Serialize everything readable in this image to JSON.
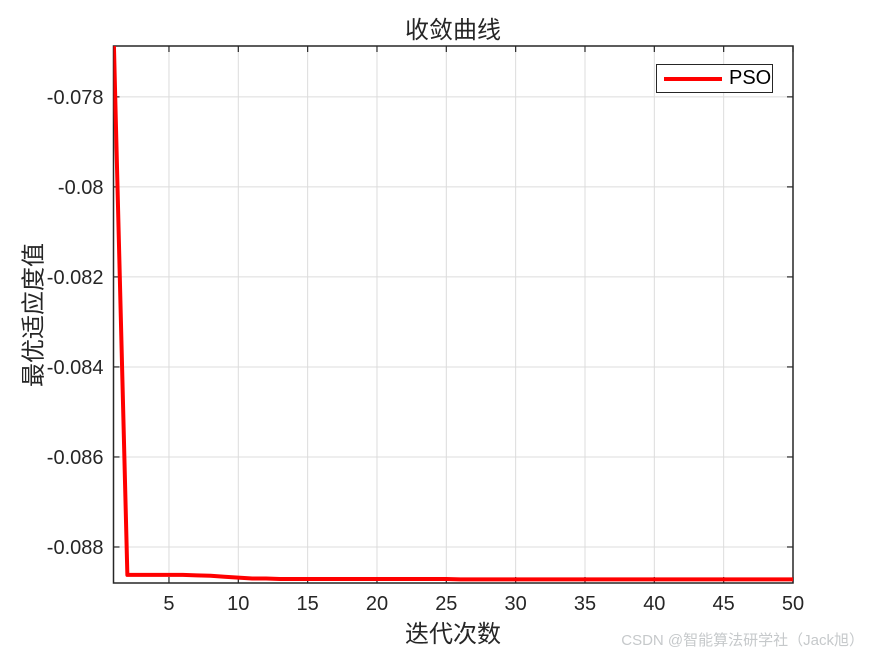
{
  "figure": {
    "title": "收敛曲线",
    "watermark": "CSDN @智能算法研学社（Jack旭）"
  },
  "legend": {
    "entries": [
      {
        "label": "PSO",
        "color": "#ff0000"
      }
    ],
    "position": "top-right"
  },
  "colors": {
    "background": "#ffffff",
    "axis": "#262626",
    "grid": "#dcdcdc",
    "tick_text": "#262626",
    "series_pso": "#ff0000",
    "watermark": "#c6c9cb"
  },
  "chart_data": {
    "type": "line",
    "title": "收敛曲线",
    "xlabel": "迭代次数",
    "ylabel": "最优适应度值",
    "xlim": [
      1,
      50
    ],
    "ylim": [
      -0.0888,
      -0.07687
    ],
    "grid": true,
    "legend_position": "top-right",
    "x_ticks": [
      5,
      10,
      15,
      20,
      25,
      30,
      35,
      40,
      45,
      50
    ],
    "x_tick_labels": [
      "5",
      "10",
      "15",
      "20",
      "25",
      "30",
      "35",
      "40",
      "45",
      "50"
    ],
    "y_ticks": [
      -0.078,
      -0.08,
      -0.082,
      -0.084,
      -0.086,
      -0.088
    ],
    "y_tick_labels": [
      "-0.078",
      "-0.08",
      "-0.082",
      "-0.084",
      "-0.086",
      "-0.088"
    ],
    "series": [
      {
        "name": "PSO",
        "color": "#ff0000",
        "line_width": 4,
        "x": [
          1,
          2,
          3,
          4,
          5,
          6,
          7,
          8,
          9,
          10,
          11,
          12,
          13,
          14,
          15,
          16,
          17,
          18,
          19,
          20,
          21,
          22,
          23,
          24,
          25,
          26,
          27,
          28,
          29,
          30,
          31,
          32,
          33,
          34,
          35,
          36,
          37,
          38,
          39,
          40,
          41,
          42,
          43,
          44,
          45,
          46,
          47,
          48,
          49,
          50
        ],
        "y": [
          -0.0765,
          -0.08862,
          -0.08862,
          -0.08862,
          -0.08862,
          -0.08862,
          -0.08863,
          -0.08864,
          -0.08866,
          -0.08868,
          -0.0887,
          -0.0887,
          -0.08871,
          -0.08871,
          -0.08871,
          -0.08871,
          -0.08871,
          -0.08871,
          -0.08871,
          -0.08871,
          -0.08871,
          -0.08871,
          -0.08871,
          -0.08871,
          -0.08871,
          -0.08872,
          -0.08872,
          -0.08872,
          -0.08872,
          -0.08872,
          -0.08872,
          -0.08872,
          -0.08872,
          -0.08872,
          -0.08872,
          -0.08872,
          -0.08872,
          -0.08872,
          -0.08872,
          -0.08872,
          -0.08872,
          -0.08872,
          -0.08872,
          -0.08872,
          -0.08872,
          -0.08872,
          -0.08872,
          -0.08872,
          -0.08872,
          -0.08872
        ]
      }
    ]
  }
}
